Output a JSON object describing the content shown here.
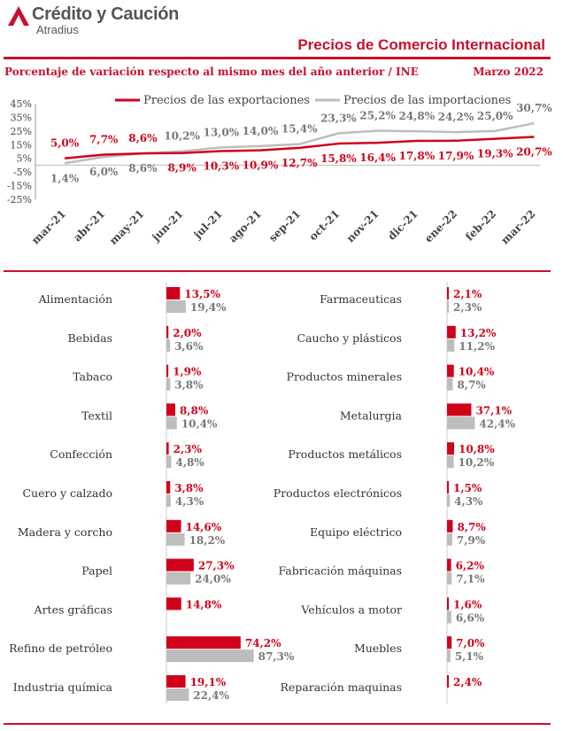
{
  "header": {
    "brand_name": "Crédito y Caución",
    "brand_sub": "Atradius",
    "title": "Precios de Comercio Internacional",
    "subtitle": "Porcentaje de variación respecto al mismo mes del año anterior / INE",
    "date": "Marzo 2022"
  },
  "colors": {
    "accent": "#c8102e",
    "export": "#d0021b",
    "import": "#bdbdbd",
    "label_gray": "#777777"
  },
  "chart_data": [
    {
      "type": "line",
      "categories": [
        "mar-21",
        "abr-21",
        "may-21",
        "jun-21",
        "jul-21",
        "ago-21",
        "sep-21",
        "oct-21",
        "nov-21",
        "dic-21",
        "ene-22",
        "feb-22",
        "mar-22"
      ],
      "yticks": [
        "45%",
        "35%",
        "25%",
        "15%",
        "5%",
        "-5%",
        "-15%",
        "-25%"
      ],
      "ylim": [
        -25,
        45
      ],
      "grid": false,
      "legend": "top",
      "series": [
        {
          "name": "Precios de las exportaciones",
          "color": "#d0021b",
          "values": [
            5.0,
            7.7,
            8.6,
            8.9,
            10.3,
            10.9,
            12.7,
            15.8,
            16.4,
            17.8,
            17.9,
            19.3,
            20.7
          ],
          "labels": [
            "5,0%",
            "7,7%",
            "8,6%",
            "8,9%",
            "10,3%",
            "10,9%",
            "12,7%",
            "15,8%",
            "16,4%",
            "17,8%",
            "17,9%",
            "19,3%",
            "20,7%"
          ]
        },
        {
          "name": "Precios de las importaciones",
          "color": "#bdbdbd",
          "values": [
            1.4,
            6.0,
            8.6,
            10.2,
            13.0,
            14.0,
            15.4,
            23.3,
            25.2,
            24.8,
            24.2,
            25.0,
            30.7
          ],
          "labels": [
            "1,4%",
            "6,0%",
            "8,6%",
            "10,2%",
            "13,0%",
            "14,0%",
            "15,4%",
            "23,3%",
            "25,2%",
            "24,8%",
            "24,2%",
            "25,0%",
            "30,7%"
          ]
        }
      ]
    },
    {
      "type": "bar",
      "series_names": [
        "Precios de las exportaciones",
        "Precios de las importaciones"
      ],
      "groups": [
        {
          "categories": [
            "Alimentación",
            "Bebidas",
            "Tabaco",
            "Textil",
            "Confección",
            "Cuero y calzado",
            "Madera y corcho",
            "Papel",
            "Artes gráficas",
            "Refino de petróleo",
            "Industria química"
          ],
          "export": [
            13.5,
            2.0,
            1.9,
            8.8,
            2.3,
            3.8,
            14.6,
            27.3,
            14.8,
            74.2,
            19.1
          ],
          "import": [
            19.4,
            3.6,
            3.8,
            10.4,
            4.8,
            4.3,
            18.2,
            24.0,
            null,
            87.3,
            22.4
          ],
          "export_labels": [
            "13,5%",
            "2,0%",
            "1,9%",
            "8,8%",
            "2,3%",
            "3,8%",
            "14,6%",
            "27,3%",
            "14,8%",
            "74,2%",
            "19,1%"
          ],
          "import_labels": [
            "19,4%",
            "3,6%",
            "3,8%",
            "10,4%",
            "4,8%",
            "4,3%",
            "18,2%",
            "24,0%",
            "",
            "87,3%",
            "22,4%"
          ]
        },
        {
          "categories": [
            "Farmaceuticas",
            "Caucho y plásticos",
            "Productos minerales",
            "Metalurgia",
            "Productos metálicos",
            "Productos electrónicos",
            "Equipo eléctrico",
            "Fabricación máquinas",
            "Vehículos a motor",
            "Muebles",
            "Reparación maquinas"
          ],
          "export": [
            2.1,
            13.2,
            10.4,
            37.1,
            10.8,
            1.5,
            8.7,
            6.2,
            1.6,
            7.0,
            2.4
          ],
          "import": [
            2.3,
            11.2,
            8.7,
            42.4,
            10.2,
            4.3,
            7.9,
            7.1,
            6.6,
            5.1,
            null
          ],
          "export_labels": [
            "2,1%",
            "13,2%",
            "10,4%",
            "37,1%",
            "10,8%",
            "1,5%",
            "8,7%",
            "6,2%",
            "1,6%",
            "7,0%",
            "2,4%"
          ],
          "import_labels": [
            "2,3%",
            "11,2%",
            "8,7%",
            "42,4%",
            "10,2%",
            "4,3%",
            "7,9%",
            "7,1%",
            "6,6%",
            "5,1%",
            ""
          ]
        }
      ]
    }
  ]
}
